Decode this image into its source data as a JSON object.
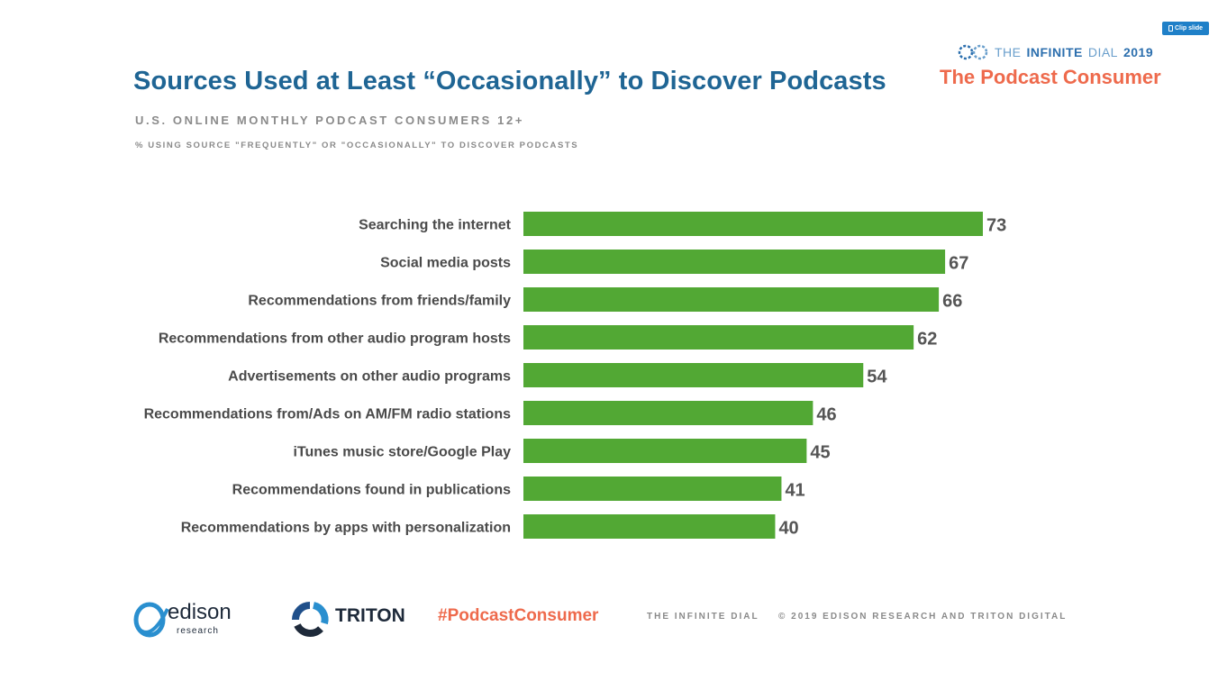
{
  "clip_button": {
    "label": "Clip slide"
  },
  "header": {
    "title": "Sources Used at Least “Occasionally” to Discover Podcasts",
    "subtitle": "U.S. ONLINE MONTHLY PODCAST CONSUMERS 12+",
    "subsubtitle": "% USING SOURCE \"FREQUENTLY\" OR \"OCCASIONALLY\" TO DISCOVER PODCASTS"
  },
  "brand": {
    "the": "THE",
    "infinite": "INFINITE",
    "dial": "DIAL",
    "year": "2019",
    "tagline": "The Podcast Consumer",
    "logo_icon": "infinite-dial-logo"
  },
  "colors": {
    "bar": "#52a834",
    "title": "#1f6594",
    "accent": "#ee6a4c",
    "muted": "#8a8a8a"
  },
  "chart_data": {
    "type": "bar",
    "orientation": "horizontal",
    "categories": [
      "Searching the internet",
      "Social media posts",
      "Recommendations from friends/family",
      "Recommendations from other audio program hosts",
      "Advertisements on other audio programs",
      "Recommendations from/Ads on AM/FM radio stations",
      "iTunes music store/Google Play",
      "Recommendations found in publications",
      "Recommendations by apps with personalization"
    ],
    "values": [
      73,
      67,
      66,
      62,
      54,
      46,
      45,
      41,
      40
    ],
    "value_labels": [
      "73",
      "67",
      "66",
      "62",
      "54",
      "46",
      "45",
      "41",
      "40"
    ],
    "xlim": [
      0,
      100
    ],
    "grid": false,
    "legend": "none"
  },
  "footer": {
    "edison_name": "edison",
    "edison_sub": "research",
    "triton_name": "TRITON",
    "hashtag": "#PodcastConsumer",
    "infinite_dial": "THE INFINITE DIAL",
    "copyright": "© 2019 EDISON RESEARCH AND TRITON DIGITAL"
  }
}
